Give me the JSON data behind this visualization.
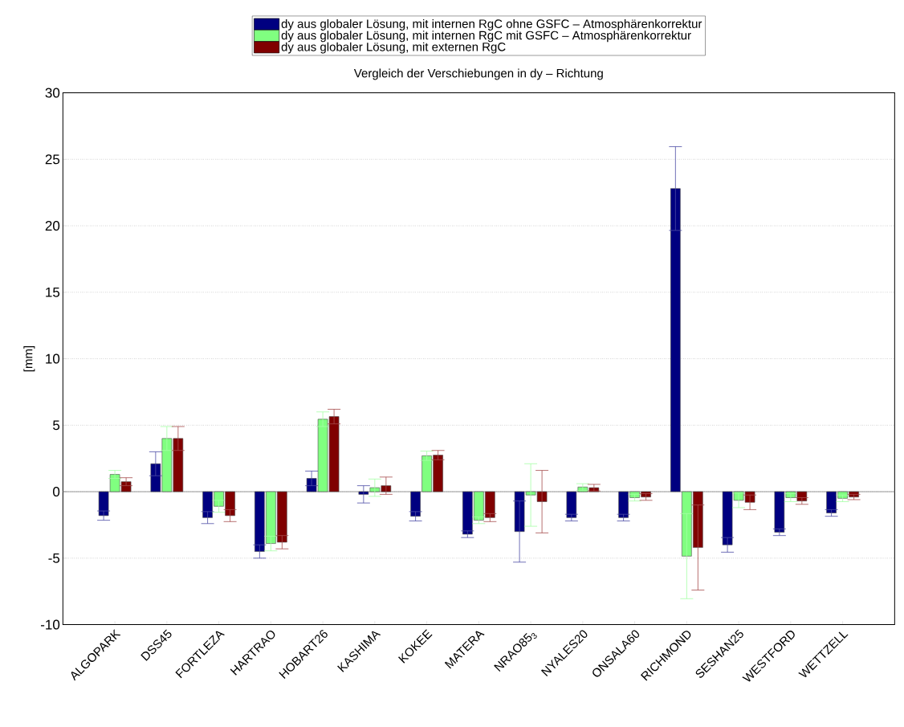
{
  "chart_data": {
    "type": "bar",
    "title": "Vergleich der Verschiebungen in dy – Richtung",
    "ylabel": "[mm]",
    "categories": [
      "ALGOPARK",
      "DSS45",
      "FORTLEZA",
      "HARTRAO",
      "HOBART26",
      "KASHIMA",
      "KOKEE",
      "MATERA",
      "NRAO85$_{3}$",
      "NYALES20",
      "ONSALA60",
      "RICHMOND",
      "SESHAN25",
      "WESTFORD",
      "WETTZELL"
    ],
    "series": [
      {
        "name": "dy aus globaler Lösung, mit internen RgC ohne GSFC – Atmosphärenkorrektur",
        "color": "#000080",
        "values": [
          -1.8,
          2.1,
          -1.95,
          -4.5,
          1.0,
          -0.2,
          -1.85,
          -3.2,
          -3.0,
          -1.95,
          -1.95,
          22.8,
          -4.0,
          -3.05,
          -1.6
        ],
        "errors": [
          0.35,
          0.9,
          0.45,
          0.5,
          0.55,
          0.65,
          0.35,
          0.25,
          2.3,
          0.25,
          0.25,
          3.15,
          0.55,
          0.25,
          0.25
        ]
      },
      {
        "name": "dy aus globaler Lösung, mit internen RgC mit GSFC – Atmosphärenkorrektur",
        "color": "#80ff80",
        "values": [
          1.3,
          4.0,
          -1.1,
          -3.9,
          5.45,
          0.3,
          2.7,
          -2.15,
          -0.25,
          0.35,
          -0.45,
          -4.85,
          -0.65,
          -0.45,
          -0.5
        ],
        "errors": [
          0.3,
          0.9,
          0.45,
          0.55,
          0.55,
          0.65,
          0.35,
          0.25,
          2.35,
          0.25,
          0.25,
          3.2,
          0.55,
          0.3,
          0.25
        ]
      },
      {
        "name": "dy aus globaler Lösung, mit externen RgC",
        "color": "#800000",
        "values": [
          0.75,
          4.0,
          -1.8,
          -3.8,
          5.65,
          0.45,
          2.75,
          -1.95,
          -0.75,
          0.3,
          -0.4,
          -4.2,
          -0.8,
          -0.7,
          -0.4
        ],
        "errors": [
          0.3,
          0.9,
          0.45,
          0.5,
          0.55,
          0.65,
          0.35,
          0.3,
          2.35,
          0.25,
          0.25,
          3.2,
          0.55,
          0.25,
          0.2
        ]
      }
    ],
    "ylim": [
      -10,
      30
    ],
    "yticks": [
      -10,
      -5,
      0,
      5,
      10,
      15,
      20,
      25,
      30
    ],
    "grid": "y",
    "legend": "top"
  }
}
